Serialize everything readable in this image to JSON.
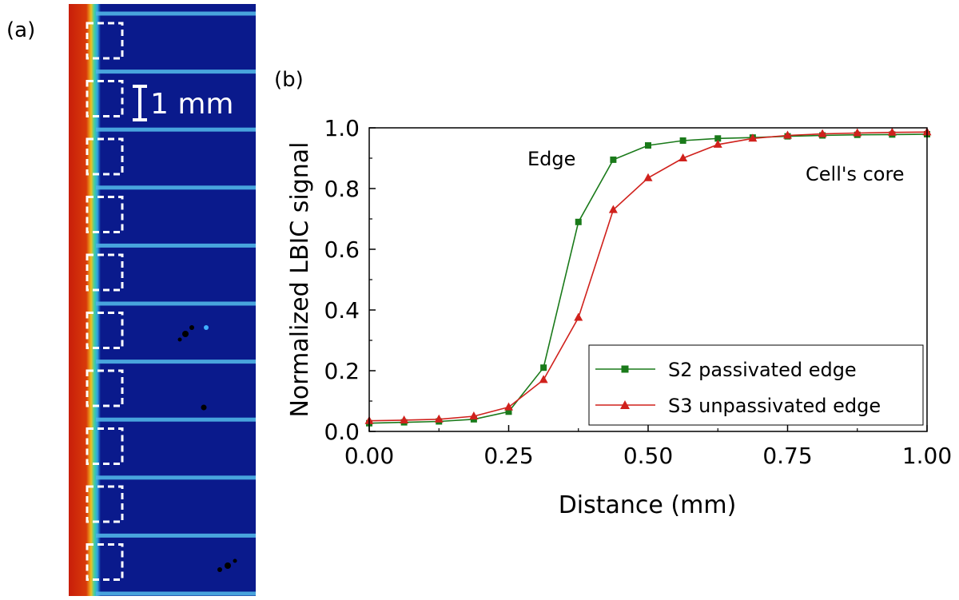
{
  "panel_a": {
    "label": "(a)",
    "scale_bar_label": "1 mm",
    "colors": {
      "background": "#0a1a8c",
      "edge": "#c81e0a",
      "finger": "#4fb4e6"
    }
  },
  "panel_b": {
    "label": "(b)"
  },
  "chart_data": {
    "type": "line",
    "xlabel": "Distance (mm)",
    "ylabel": "Normalized LBIC signal",
    "xlim": [
      0,
      1
    ],
    "ylim": [
      0,
      1
    ],
    "x_ticks": [
      "0.00",
      "0.25",
      "0.50",
      "0.75",
      "1.00"
    ],
    "y_ticks": [
      "0.0",
      "0.2",
      "0.4",
      "0.6",
      "0.8",
      "1.0"
    ],
    "annotations": [
      "Edge",
      "Cell's core"
    ],
    "legend_position": "bottom-right",
    "grid": false,
    "series": [
      {
        "name": "S2 passivated edge",
        "color": "#1a7a1a",
        "marker": "square",
        "x": [
          0,
          0.0625,
          0.125,
          0.1875,
          0.25,
          0.3125,
          0.375,
          0.4375,
          0.5,
          0.5625,
          0.625,
          0.6875,
          0.75,
          0.8125,
          0.875,
          0.9375,
          1.0
        ],
        "y": [
          0.027,
          0.03,
          0.033,
          0.04,
          0.065,
          0.21,
          0.69,
          0.895,
          0.942,
          0.958,
          0.965,
          0.968,
          0.972,
          0.975,
          0.977,
          0.978,
          0.979
        ]
      },
      {
        "name": "S3 unpassivated edge",
        "color": "#d0211c",
        "marker": "triangle",
        "x": [
          0,
          0.0625,
          0.125,
          0.1875,
          0.25,
          0.3125,
          0.375,
          0.4375,
          0.5,
          0.5625,
          0.625,
          0.6875,
          0.75,
          0.8125,
          0.875,
          0.9375,
          1.0
        ],
        "y": [
          0.035,
          0.037,
          0.04,
          0.05,
          0.08,
          0.17,
          0.375,
          0.73,
          0.835,
          0.9,
          0.945,
          0.965,
          0.975,
          0.98,
          0.983,
          0.985,
          0.986
        ]
      }
    ]
  }
}
